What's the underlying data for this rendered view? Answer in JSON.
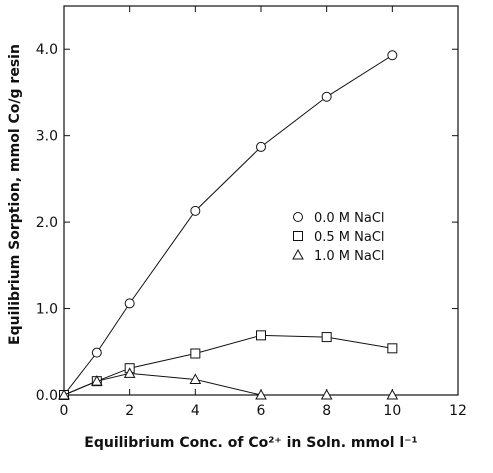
{
  "chart_data": {
    "type": "line",
    "xlabel": "Equilibrium Conc. of Co²⁺ in Soln. mmol l⁻¹",
    "ylabel": "Equilibrium Sorption, mmol Co/g resin",
    "xlim": [
      0,
      12
    ],
    "ylim": [
      0,
      4.5
    ],
    "xticks": [
      0,
      2,
      4,
      6,
      8,
      10,
      12
    ],
    "yticks": [
      0.0,
      1.0,
      2.0,
      3.0,
      4.0
    ],
    "xtick_labels": [
      "0",
      "2",
      "4",
      "6",
      "8",
      "10",
      "12"
    ],
    "ytick_labels": [
      "0.0",
      "1.0",
      "2.0",
      "3.0",
      "4.0"
    ],
    "grid": false,
    "legend_position": "center-right",
    "series": [
      {
        "name": "0.0 M NaCl",
        "marker": "circle",
        "x": [
          0,
          1,
          2,
          4,
          6,
          8,
          10
        ],
        "y": [
          0.0,
          0.49,
          1.06,
          2.13,
          2.87,
          3.45,
          3.93
        ]
      },
      {
        "name": "0.5 M NaCl",
        "marker": "square",
        "x": [
          0,
          1,
          2,
          4,
          6,
          8,
          10
        ],
        "y": [
          0.0,
          0.16,
          0.31,
          0.48,
          0.69,
          0.67,
          0.54
        ]
      },
      {
        "name": "1.0 M NaCl",
        "marker": "triangle",
        "x": [
          0,
          1,
          2,
          4,
          6,
          8,
          10
        ],
        "y": [
          0.0,
          0.16,
          0.25,
          0.18,
          0.0,
          0.0,
          0.0
        ]
      }
    ]
  }
}
